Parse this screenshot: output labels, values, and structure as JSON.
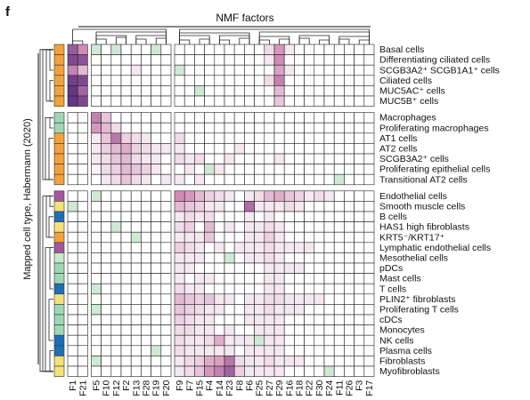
{
  "panel_label": "f",
  "chart_data": {
    "type": "heatmap",
    "title": "NMF factors",
    "ylabel": "Mapped cell type, Habermann (2020)",
    "columns": [
      "F1",
      "F21",
      "F5",
      "F10",
      "F12",
      "F2",
      "F13",
      "F28",
      "F19",
      "F20",
      "F9",
      "F7",
      "F15",
      "F4",
      "F14",
      "F23",
      "F8",
      "F6",
      "F25",
      "F27",
      "F29",
      "F16",
      "F18",
      "F22",
      "F30",
      "F24",
      "F11",
      "F26",
      "F3",
      "F17"
    ],
    "rows": [
      {
        "label": "Basal cells",
        "group": "epithelial"
      },
      {
        "label": "Differentiating ciliated cells",
        "group": "epithelial"
      },
      {
        "label": "SCGB3A2⁺ SCGB1A1⁺ cells",
        "group": "epithelial"
      },
      {
        "label": "Ciliated cells",
        "group": "epithelial"
      },
      {
        "label": "MUC5AC⁺ cells",
        "group": "epithelial"
      },
      {
        "label": "MUC5B⁺ cells",
        "group": "epithelial"
      },
      {
        "label": "Macrophages",
        "group": "immune"
      },
      {
        "label": "Proliferating macrophages",
        "group": "immune"
      },
      {
        "label": "AT1 cells",
        "group": "epithelial"
      },
      {
        "label": "AT2 cells",
        "group": "epithelial"
      },
      {
        "label": "SCGB3A2⁺ cells",
        "group": "epithelial"
      },
      {
        "label": "Proliferating epithelial cells",
        "group": "epithelial"
      },
      {
        "label": "Transitional AT2 cells",
        "group": "epithelial"
      },
      {
        "label": "Endothelial cells",
        "group": "endothelial"
      },
      {
        "label": "Smooth muscle cells",
        "group": "mesenchymal"
      },
      {
        "label": "B cells",
        "group": "immune-b"
      },
      {
        "label": "HAS1 high fibroblasts",
        "group": "mesenchymal"
      },
      {
        "label": "KRT5⁻/KRT17⁺",
        "group": "epithelial"
      },
      {
        "label": "Lymphatic endothelial cells",
        "group": "endothelial"
      },
      {
        "label": "Mesothelial cells",
        "group": "mesothelial"
      },
      {
        "label": "pDCs",
        "group": "immune"
      },
      {
        "label": "Mast cells",
        "group": "immune"
      },
      {
        "label": "T cells",
        "group": "immune-t"
      },
      {
        "label": "PLIN2⁺ fibroblasts",
        "group": "mesenchymal"
      },
      {
        "label": "Proliferating T cells",
        "group": "immune"
      },
      {
        "label": "cDCs",
        "group": "immune"
      },
      {
        "label": "Monocytes",
        "group": "immune"
      },
      {
        "label": "NK cells",
        "group": "immune-t"
      },
      {
        "label": "Plasma cells",
        "group": "immune-b"
      },
      {
        "label": "Fibroblasts",
        "group": "mesenchymal"
      },
      {
        "label": "Myofibroblasts",
        "group": "mesenchymal"
      }
    ],
    "row_blocks": [
      6,
      7,
      18
    ],
    "values": [
      [
        0.75,
        0.5,
        0,
        0,
        0,
        0,
        0,
        0,
        0,
        0,
        0,
        0,
        0,
        0,
        0,
        0,
        0,
        0,
        0,
        0.15,
        0.45,
        0.1,
        0,
        0,
        0,
        0,
        0,
        0,
        0,
        0
      ],
      [
        0.85,
        0.8,
        0,
        0,
        0,
        0,
        0,
        0,
        0,
        0,
        0,
        0,
        0,
        0,
        0,
        0,
        0,
        0,
        0,
        0.1,
        0.5,
        0,
        0,
        0,
        0,
        0,
        0,
        0,
        0,
        0
      ],
      [
        0.55,
        0.3,
        0,
        0,
        0,
        0,
        0.1,
        0,
        0,
        0,
        0,
        0,
        0,
        0,
        0,
        0,
        0,
        0,
        0,
        0,
        0.4,
        0.1,
        0,
        0,
        0,
        0,
        0,
        0,
        0,
        0
      ],
      [
        0.9,
        0.85,
        0,
        0,
        0,
        0,
        0,
        0,
        0,
        0,
        0,
        0,
        0,
        0,
        0,
        0,
        0,
        0,
        0,
        0.15,
        0.55,
        0,
        0,
        0,
        0,
        0,
        0,
        0,
        0,
        0
      ],
      [
        0.95,
        0.7,
        0,
        0,
        0,
        0,
        0,
        0,
        0,
        0,
        0,
        0,
        0,
        0,
        0,
        0,
        0,
        0,
        0,
        0,
        0.3,
        0,
        0,
        0,
        0,
        0,
        0,
        0,
        0,
        0
      ],
      [
        0.95,
        0.85,
        0,
        0,
        0,
        0,
        0,
        0,
        0,
        0,
        0,
        0,
        0,
        0,
        0,
        0,
        0,
        0,
        0,
        0,
        0.25,
        0,
        0,
        0,
        0,
        0,
        0,
        0,
        0,
        0
      ],
      [
        0,
        0,
        0.55,
        0.25,
        0,
        0,
        0,
        0,
        0,
        0,
        0,
        0,
        0,
        0,
        0,
        0,
        0,
        0,
        0,
        0,
        0,
        0,
        0,
        0,
        0,
        0,
        0,
        0,
        0,
        0
      ],
      [
        0,
        0,
        0.45,
        0.3,
        0.15,
        0,
        0,
        0,
        0,
        0,
        0,
        0,
        0,
        0,
        0,
        0,
        0,
        0,
        0,
        0,
        0,
        0,
        0,
        0,
        0,
        0,
        0,
        0,
        0,
        0
      ],
      [
        0,
        0,
        0.1,
        0.25,
        0.6,
        0.2,
        0.15,
        0.1,
        0,
        0,
        0.15,
        0,
        0,
        0,
        0,
        0,
        0,
        0,
        0,
        0,
        0,
        0,
        0,
        0,
        0,
        0,
        0,
        0,
        0,
        0
      ],
      [
        0,
        0,
        0.1,
        0.2,
        0.3,
        0.35,
        0.2,
        0.15,
        0.1,
        0.1,
        0.1,
        0,
        0,
        0,
        0,
        0,
        0.1,
        0,
        0,
        0,
        0,
        0,
        0,
        0,
        0,
        0,
        0,
        0,
        0,
        0
      ],
      [
        0,
        0,
        0.1,
        0.15,
        0.25,
        0.3,
        0.15,
        0.1,
        0.1,
        0,
        0.15,
        0.1,
        0.15,
        0,
        0,
        0.1,
        0,
        0,
        0,
        0,
        0.1,
        0,
        0,
        0,
        0,
        0,
        0,
        0,
        0,
        0
      ],
      [
        0,
        0,
        0.05,
        0.15,
        0.2,
        0.3,
        0.25,
        0.2,
        0.1,
        0,
        0,
        0.1,
        0,
        0,
        0.1,
        0,
        0,
        0,
        0,
        0,
        0,
        0,
        0,
        0,
        0,
        0,
        0,
        0,
        0,
        0
      ],
      [
        0,
        0,
        0,
        0.1,
        0.15,
        0.25,
        0.15,
        0.1,
        0,
        0.1,
        0.1,
        0,
        0.1,
        0,
        0,
        0,
        0,
        0,
        0,
        0,
        0,
        0,
        0,
        0,
        0,
        0,
        0,
        0,
        0,
        0
      ],
      [
        0,
        0,
        0,
        0,
        0,
        0,
        0,
        0,
        0,
        0,
        0.5,
        0.45,
        0.3,
        0.2,
        0.15,
        0.1,
        0,
        0.1,
        0.15,
        0.3,
        0.35,
        0.25,
        0.2,
        0.1,
        0.15,
        0.1,
        0,
        0,
        0,
        0
      ],
      [
        0,
        0,
        0,
        0,
        0,
        0,
        0,
        0,
        0,
        0,
        0.3,
        0.25,
        0.2,
        0.1,
        0.1,
        0,
        0,
        0.65,
        0.1,
        0.1,
        0.1,
        0.15,
        0.1,
        0,
        0,
        0,
        0,
        0,
        0,
        0
      ],
      [
        0,
        0,
        0,
        0,
        0,
        0,
        0,
        0,
        0,
        0,
        0.1,
        0.15,
        0.1,
        0.15,
        0,
        0,
        0,
        0.1,
        0,
        0.1,
        0,
        0,
        0,
        0,
        0,
        0,
        0,
        0,
        0,
        0
      ],
      [
        0,
        0,
        0,
        0,
        0,
        0,
        0,
        0,
        0,
        0,
        0.15,
        0.2,
        0,
        0.3,
        0,
        0.1,
        0,
        0.1,
        0.1,
        0.15,
        0.1,
        0,
        0,
        0,
        0,
        0,
        0,
        0,
        0,
        0
      ],
      [
        0,
        0,
        0,
        0,
        0,
        0,
        0,
        0,
        0,
        0,
        0.1,
        0.1,
        0.1,
        0.25,
        0,
        0,
        0,
        0.1,
        0.1,
        0.2,
        0.1,
        0,
        0,
        0,
        0,
        0,
        0,
        0,
        0,
        0
      ],
      [
        0,
        0,
        0,
        0,
        0,
        0,
        0,
        0,
        0,
        0,
        0.2,
        0.15,
        0.1,
        0,
        0.1,
        0,
        0.1,
        0.1,
        0.1,
        0.15,
        0.1,
        0.1,
        0.1,
        0.1,
        0,
        0,
        0,
        0,
        0,
        0
      ],
      [
        0,
        0,
        0,
        0,
        0,
        0,
        0,
        0,
        0,
        0,
        0.1,
        0.1,
        0.1,
        0,
        0,
        0,
        0,
        0.1,
        0.1,
        0.15,
        0.1,
        0,
        0,
        0,
        0,
        0,
        0,
        0,
        0,
        0
      ],
      [
        0,
        0,
        0,
        0,
        0,
        0,
        0,
        0,
        0,
        0,
        0.1,
        0.1,
        0,
        0,
        0,
        0,
        0,
        0,
        0,
        0.1,
        0.1,
        0.1,
        0.1,
        0,
        0,
        0,
        0,
        0,
        0,
        0
      ],
      [
        0,
        0,
        0,
        0,
        0,
        0,
        0,
        0,
        0,
        0,
        0.1,
        0,
        0.1,
        0.1,
        0,
        0,
        0,
        0,
        0,
        0.1,
        0.1,
        0,
        0,
        0,
        0,
        0,
        0,
        0,
        0,
        0
      ],
      [
        0,
        0,
        0,
        0,
        0,
        0,
        0,
        0,
        0,
        0,
        0.15,
        0.1,
        0.1,
        0,
        0,
        0,
        0,
        0,
        0,
        0.1,
        0.1,
        0,
        0,
        0,
        0,
        0,
        0,
        0,
        0,
        0
      ],
      [
        0,
        0,
        0,
        0,
        0,
        0,
        0,
        0,
        0,
        0,
        0.3,
        0.25,
        0.2,
        0.25,
        0.1,
        0.1,
        0,
        0.1,
        0.1,
        0.15,
        0.15,
        0.1,
        0.1,
        0.1,
        0.1,
        0,
        0,
        0,
        0,
        0
      ],
      [
        0,
        0,
        0,
        0,
        0,
        0,
        0,
        0,
        0,
        0,
        0.25,
        0.2,
        0.15,
        0.1,
        0.1,
        0,
        0,
        0.1,
        0.1,
        0.15,
        0.1,
        0.1,
        0.1,
        0,
        0,
        0,
        0,
        0,
        0,
        0
      ],
      [
        0,
        0,
        0,
        0,
        0,
        0,
        0,
        0,
        0,
        0,
        0.2,
        0.15,
        0.1,
        0.1,
        0,
        0,
        0,
        0.1,
        0.1,
        0.1,
        0.1,
        0,
        0,
        0,
        0,
        0,
        0,
        0,
        0,
        0
      ],
      [
        0,
        0,
        0,
        0,
        0,
        0,
        0,
        0,
        0,
        0,
        0.15,
        0.15,
        0.1,
        0.1,
        0,
        0.1,
        0,
        0,
        0.1,
        0.1,
        0.1,
        0,
        0,
        0,
        0,
        0,
        0,
        0,
        0,
        0
      ],
      [
        0,
        0,
        0,
        0,
        0,
        0,
        0,
        0,
        0,
        0,
        0.15,
        0.1,
        0.1,
        0.15,
        0.35,
        0.1,
        0.1,
        0.1,
        0,
        0.1,
        0.1,
        0,
        0,
        0,
        0,
        0,
        0,
        0,
        0,
        0
      ],
      [
        0,
        0,
        0,
        0,
        0,
        0,
        0,
        0,
        0,
        0,
        0.15,
        0.1,
        0.1,
        0.1,
        0.1,
        0.1,
        0,
        0.1,
        0.1,
        0.1,
        0.1,
        0,
        0,
        0,
        0,
        0,
        0,
        0,
        0,
        0
      ],
      [
        0,
        0,
        0,
        0,
        0,
        0,
        0,
        0,
        0,
        0,
        0.1,
        0.15,
        0.2,
        0.35,
        0.4,
        0.6,
        0.15,
        0.1,
        0.1,
        0.15,
        0.1,
        0.1,
        0.1,
        0,
        0,
        0,
        0,
        0,
        0,
        0
      ],
      [
        0,
        0,
        0,
        0,
        0,
        0,
        0,
        0,
        0,
        0,
        0.1,
        0.15,
        0.25,
        0.45,
        0.55,
        0.7,
        0.2,
        0.1,
        0.1,
        0.1,
        0.1,
        0,
        0,
        0,
        0,
        0,
        0,
        0,
        0,
        0
      ]
    ],
    "greens": [
      [
        0,
        0,
        0,
        1
      ],
      [
        0,
        0,
        0,
        2
      ],
      [
        0,
        0,
        0,
        4
      ],
      [
        0,
        0,
        0,
        8
      ],
      [
        2,
        0,
        0,
        10
      ],
      [
        4,
        0,
        0,
        12
      ],
      [
        6,
        1,
        0,
        3
      ],
      [
        8,
        1,
        0,
        5
      ],
      [
        13,
        1,
        0,
        2
      ],
      [
        13,
        1,
        0,
        17
      ],
      [
        13,
        1,
        0,
        23
      ],
      [
        14,
        1,
        0,
        0
      ],
      [
        17,
        1,
        0,
        6
      ],
      [
        19,
        1,
        0,
        15
      ],
      [
        20,
        1,
        0,
        21
      ],
      [
        22,
        1,
        0,
        2
      ],
      [
        23,
        1,
        0,
        20
      ],
      [
        26,
        1,
        0,
        15
      ],
      [
        27,
        1,
        0,
        18
      ],
      [
        28,
        1,
        0,
        8
      ],
      [
        29,
        1,
        0,
        2
      ],
      [
        30,
        1,
        0,
        25
      ],
      [
        13,
        0,
        0,
        19
      ],
      [
        18,
        1,
        0,
        19
      ],
      [
        24,
        1,
        0,
        2
      ],
      [
        25,
        1,
        0,
        11
      ],
      [
        16,
        1,
        0,
        4
      ],
      [
        11,
        1,
        0,
        13
      ],
      [
        12,
        1,
        0,
        26
      ]
    ],
    "colors": {
      "low": "#ffffff",
      "high": "#5a2d82",
      "mid": "#d18ab6",
      "green": "#cfe9d5",
      "grid": "#222222",
      "bar_epithelial": "#f2a23a",
      "bar_immune": "#9fd7b4",
      "bar_immune_t": "#1d6fb8",
      "bar_immune_b": "#1d6fb8",
      "bar_endothelial": "#a1569e",
      "bar_mesenchymal": "#f3e17a",
      "bar_mesothelial": "#c9e9c9"
    }
  }
}
